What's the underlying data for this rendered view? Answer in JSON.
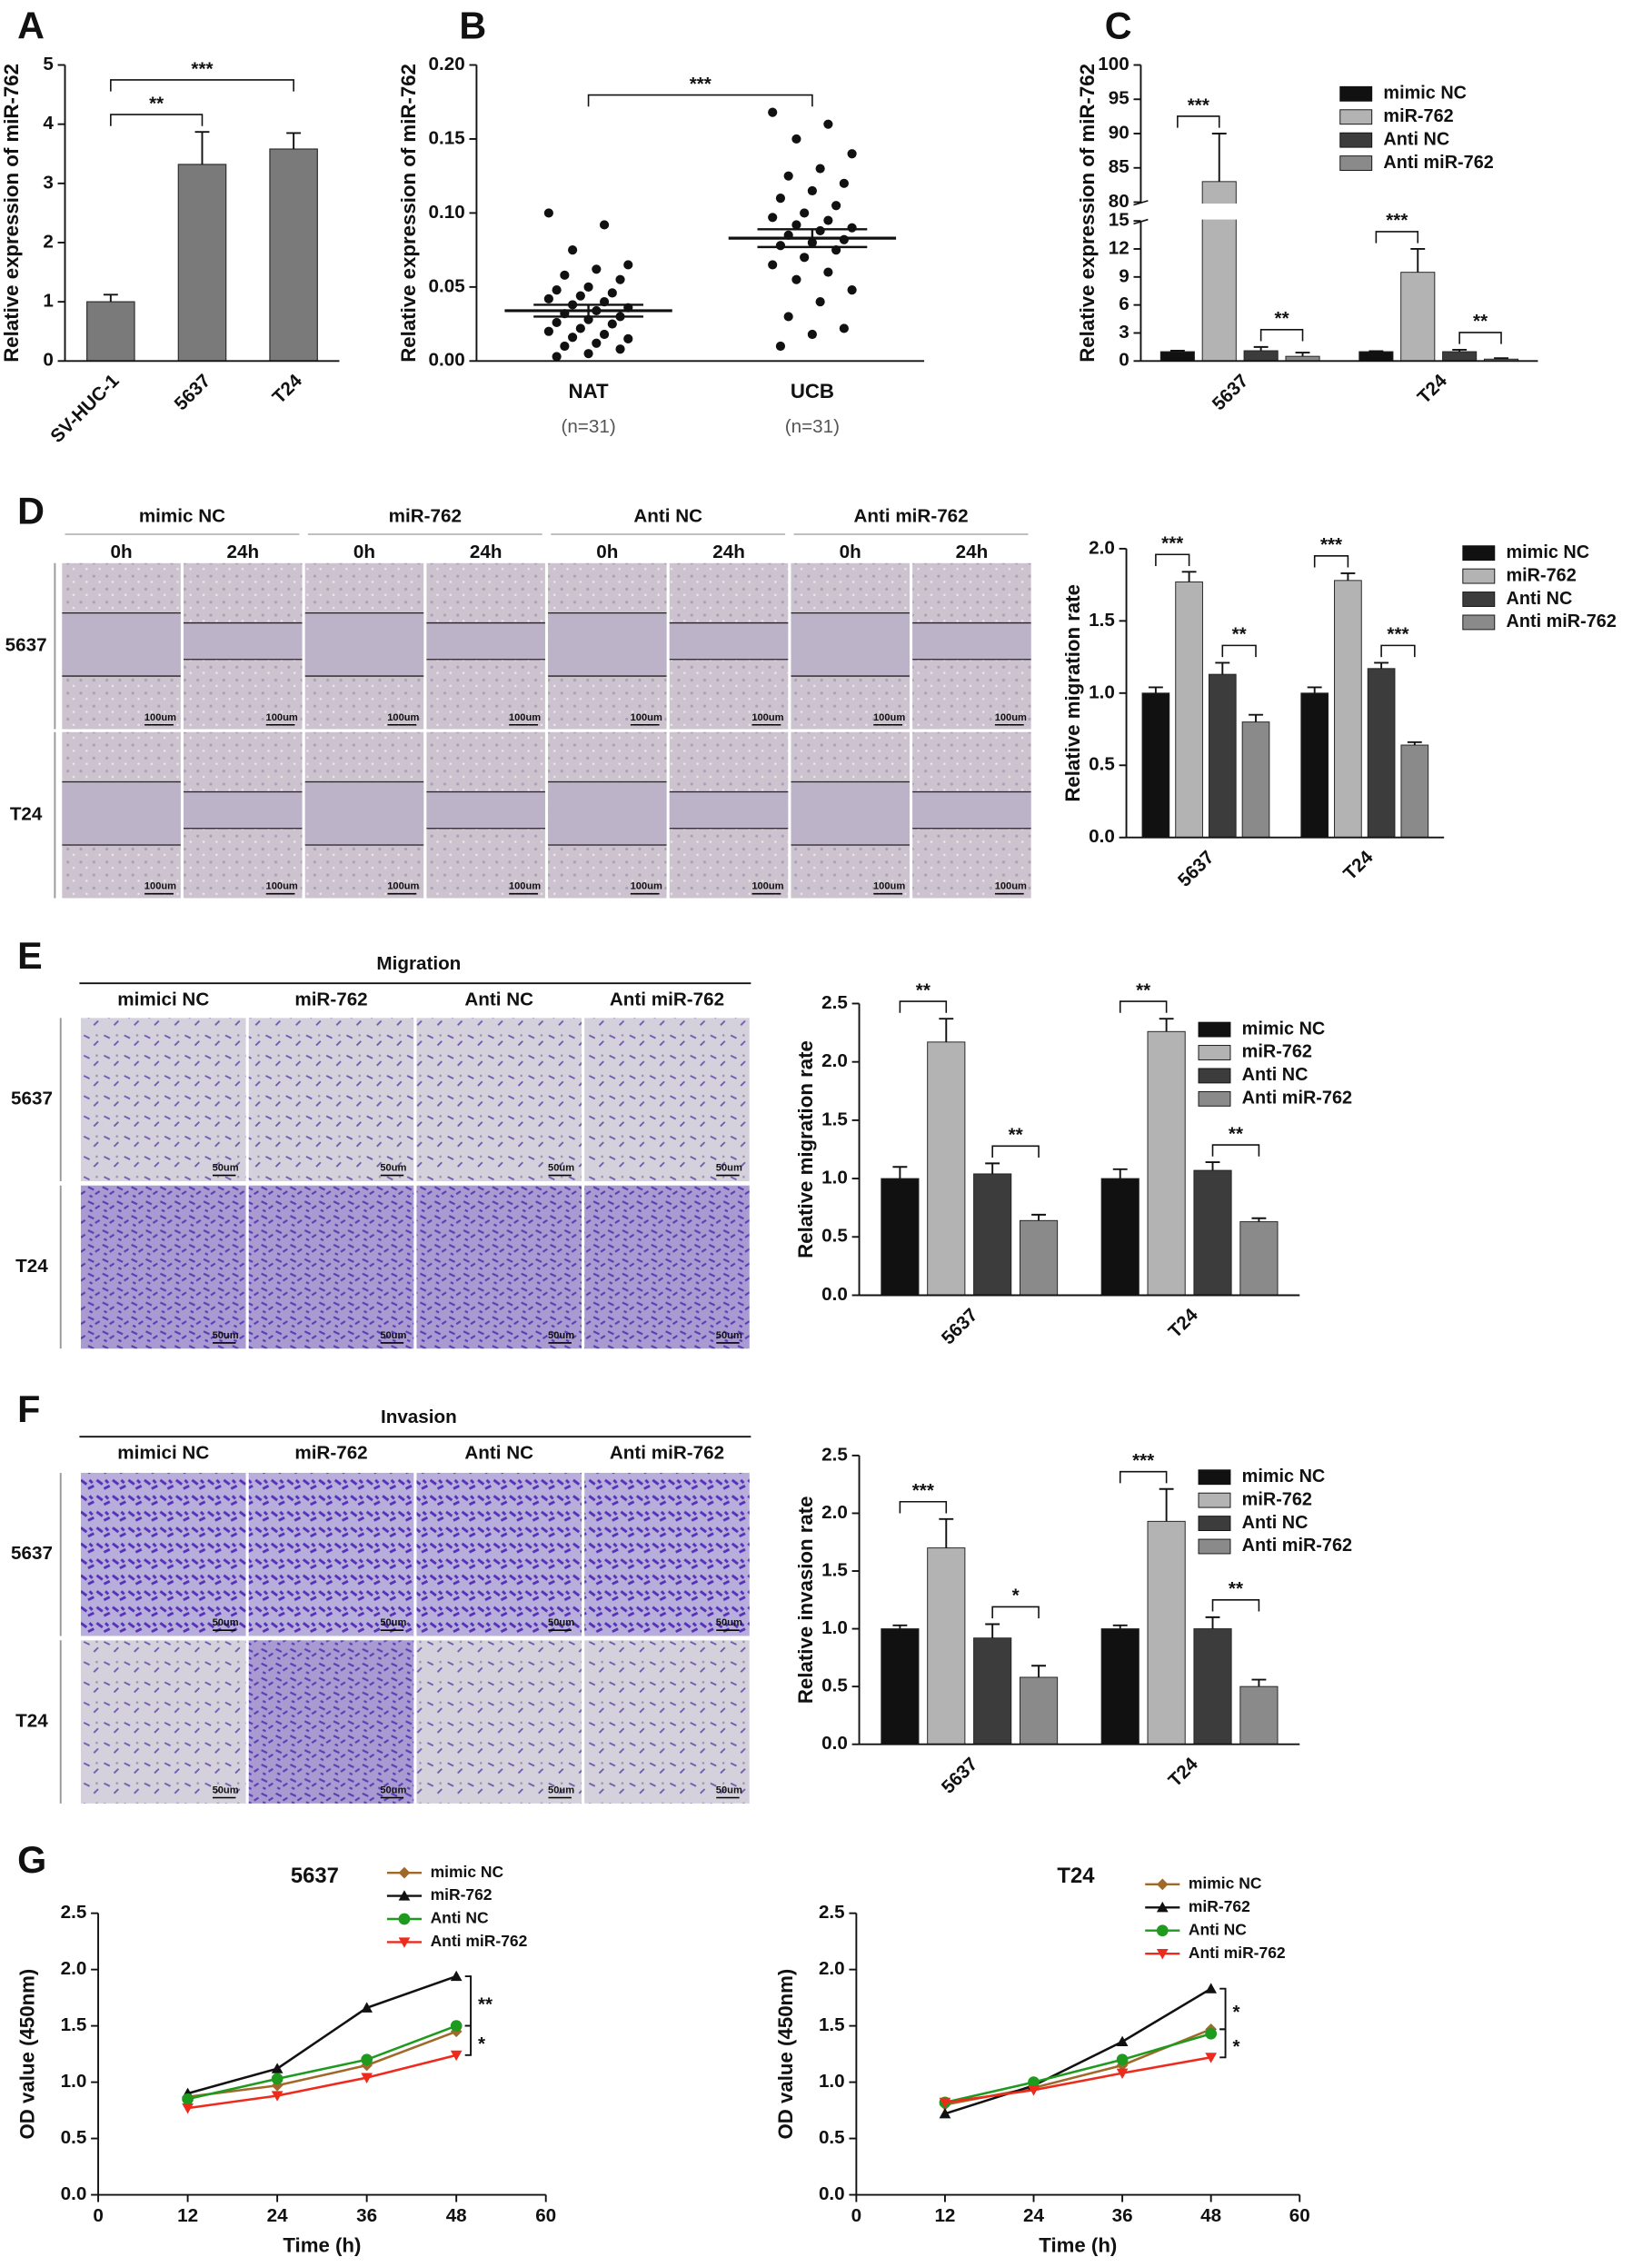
{
  "chart_data": [
    {
      "panel": "A",
      "type": "bar",
      "ylabel": "Relative expression of miR-762",
      "categories": [
        "SV-HUC-1",
        "5637",
        "T24"
      ],
      "values": [
        1.0,
        3.32,
        3.58
      ],
      "errors": [
        0.12,
        0.55,
        0.27
      ],
      "color": "#7a7a7a",
      "ylim": [
        0,
        5
      ],
      "yticks": [
        0,
        1,
        2,
        3,
        4,
        5
      ],
      "annotations": [
        "**",
        "***"
      ]
    },
    {
      "panel": "B",
      "type": "dot",
      "ylabel": "Relative expression of miR-762",
      "categories": [
        "NAT",
        "UCB"
      ],
      "category_notes": [
        "(n=31)",
        "(n=31)"
      ],
      "points": [
        [
          0.1,
          0.092,
          0.075,
          0.065,
          0.062,
          0.058,
          0.055,
          0.05,
          0.048,
          0.046,
          0.044,
          0.042,
          0.04,
          0.038,
          0.036,
          0.034,
          0.032,
          0.03,
          0.028,
          0.026,
          0.025,
          0.022,
          0.02,
          0.018,
          0.016,
          0.015,
          0.012,
          0.01,
          0.008,
          0.005,
          0.003
        ],
        [
          0.168,
          0.16,
          0.15,
          0.14,
          0.13,
          0.125,
          0.12,
          0.115,
          0.11,
          0.105,
          0.1,
          0.097,
          0.095,
          0.092,
          0.09,
          0.088,
          0.085,
          0.082,
          0.08,
          0.078,
          0.075,
          0.07,
          0.065,
          0.06,
          0.055,
          0.048,
          0.04,
          0.03,
          0.022,
          0.018,
          0.01
        ]
      ],
      "means": [
        0.034,
        0.083
      ],
      "sems": [
        0.004,
        0.006
      ],
      "color": "#111111",
      "ylim": [
        0,
        0.2
      ],
      "yticks": [
        {
          "value": 0,
          "label": "0.00"
        },
        {
          "value": 0.05,
          "label": "0.05"
        },
        {
          "value": 0.1,
          "label": "0.10"
        },
        {
          "value": 0.15,
          "label": "0.15"
        },
        {
          "value": 0.2,
          "label": "0.20"
        }
      ],
      "annotations": [
        "***"
      ]
    },
    {
      "panel": "C",
      "type": "grouped_bar",
      "ylabel": "Relative expression of miR-762",
      "categories": [
        "5637",
        "T24"
      ],
      "series": [
        {
          "name": "mimic NC",
          "color": "#111111",
          "values": [
            1.0,
            1.0
          ],
          "errors": [
            0.1,
            0.05
          ]
        },
        {
          "name": "miR-762",
          "color": "#b3b3b3",
          "values": [
            83,
            9.5
          ],
          "errors": [
            7,
            2.5
          ]
        },
        {
          "name": "Anti NC",
          "color": "#3c3c3c",
          "values": [
            1.1,
            1.0
          ],
          "errors": [
            0.4,
            0.2
          ]
        },
        {
          "name": "Anti miR-762",
          "color": "#8a8a8a",
          "values": [
            0.5,
            0.2
          ],
          "errors": [
            0.4,
            0.1
          ]
        }
      ],
      "ylim": [
        0,
        100
      ],
      "y_break": [
        15,
        80
      ],
      "yticks": [
        0,
        3,
        6,
        9,
        12,
        15,
        80,
        85,
        90,
        95,
        100
      ],
      "annotations": [
        "***",
        "**",
        "***",
        "**"
      ]
    },
    {
      "type": "grouped_bar",
      "ylabel": "Relative migration rate",
      "categories": [
        "5637",
        "T24"
      ],
      "series": [
        {
          "name": "mimic NC",
          "color": "#111111",
          "values": [
            1.0,
            1.0
          ],
          "errors": [
            0.04,
            0.04
          ]
        },
        {
          "name": "miR-762",
          "color": "#b3b3b3",
          "values": [
            1.77,
            1.78
          ],
          "errors": [
            0.07,
            0.05
          ]
        },
        {
          "name": "Anti NC",
          "color": "#3c3c3c",
          "values": [
            1.13,
            1.17
          ],
          "errors": [
            0.08,
            0.04
          ]
        },
        {
          "name": "Anti miR-762",
          "color": "#8a8a8a",
          "values": [
            0.8,
            0.64
          ],
          "errors": [
            0.05,
            0.02
          ]
        }
      ],
      "ylim": [
        0,
        2
      ],
      "yticks": [
        {
          "value": 0,
          "label": "0.0"
        },
        {
          "value": 0.5,
          "label": "0.5"
        },
        {
          "value": 1,
          "label": "1.0"
        },
        {
          "value": 1.5,
          "label": "1.5"
        },
        {
          "value": 2,
          "label": "2.0"
        }
      ],
      "annotations": [
        "***",
        "**",
        "***",
        "***"
      ]
    },
    {
      "type": "grouped_bar",
      "ylabel": "Relative migration rate",
      "categories": [
        "5637",
        "T24"
      ],
      "series": [
        {
          "name": "mimic NC",
          "color": "#111111",
          "values": [
            1.0,
            1.0
          ],
          "errors": [
            0.1,
            0.08
          ]
        },
        {
          "name": "miR-762",
          "color": "#b3b3b3",
          "values": [
            2.17,
            2.26
          ],
          "errors": [
            0.2,
            0.11
          ]
        },
        {
          "name": "Anti NC",
          "color": "#3c3c3c",
          "values": [
            1.04,
            1.07
          ],
          "errors": [
            0.09,
            0.07
          ]
        },
        {
          "name": "Anti miR-762",
          "color": "#8a8a8a",
          "values": [
            0.64,
            0.63
          ],
          "errors": [
            0.05,
            0.03
          ]
        }
      ],
      "ylim": [
        0,
        2.5
      ],
      "yticks": [
        {
          "value": 0,
          "label": "0.0"
        },
        {
          "value": 0.5,
          "label": "0.5"
        },
        {
          "value": 1,
          "label": "1.0"
        },
        {
          "value": 1.5,
          "label": "1.5"
        },
        {
          "value": 2,
          "label": "2.0"
        },
        {
          "value": 2.5,
          "label": "2.5"
        }
      ],
      "annotations": [
        "**",
        "**",
        "**",
        "**"
      ]
    },
    {
      "type": "grouped_bar",
      "ylabel": "Relative invasion rate",
      "categories": [
        "5637",
        "T24"
      ],
      "series": [
        {
          "name": "mimic NC",
          "color": "#111111",
          "values": [
            1.0,
            1.0
          ],
          "errors": [
            0.03,
            0.03
          ]
        },
        {
          "name": "miR-762",
          "color": "#b3b3b3",
          "values": [
            1.7,
            1.93
          ],
          "errors": [
            0.25,
            0.28
          ]
        },
        {
          "name": "Anti NC",
          "color": "#3c3c3c",
          "values": [
            0.92,
            1.0
          ],
          "errors": [
            0.12,
            0.1
          ]
        },
        {
          "name": "Anti miR-762",
          "color": "#8a8a8a",
          "values": [
            0.58,
            0.5
          ],
          "errors": [
            0.1,
            0.06
          ]
        }
      ],
      "ylim": [
        0,
        2.5
      ],
      "yticks": [
        {
          "value": 0,
          "label": "0.0"
        },
        {
          "value": 0.5,
          "label": "0.5"
        },
        {
          "value": 1,
          "label": "1.0"
        },
        {
          "value": 1.5,
          "label": "1.5"
        },
        {
          "value": 2,
          "label": "2.0"
        },
        {
          "value": 2.5,
          "label": "2.5"
        }
      ],
      "annotations": [
        "***",
        "*",
        "***",
        "**"
      ]
    },
    {
      "panel": "G",
      "type": "line",
      "title": "5637",
      "xlabel": "Time (h)",
      "ylabel": "OD value (450nm)",
      "x": [
        12,
        24,
        36,
        48
      ],
      "xlim": [
        0,
        60
      ],
      "xticks": [
        0,
        12,
        24,
        36,
        48,
        60
      ],
      "ylim": [
        0,
        2.5
      ],
      "yticks": [
        {
          "value": 0,
          "label": "0.0"
        },
        {
          "value": 0.5,
          "label": "0.5"
        },
        {
          "value": 1,
          "label": "1.0"
        },
        {
          "value": 1.5,
          "label": "1.5"
        },
        {
          "value": 2,
          "label": "2.0"
        },
        {
          "value": 2.5,
          "label": "2.5"
        }
      ],
      "series": [
        {
          "name": "mimic NC",
          "color": "#a0692a",
          "marker": "diamond",
          "values": [
            0.87,
            0.97,
            1.15,
            1.45
          ]
        },
        {
          "name": "miR-762",
          "color": "#111111",
          "marker": "triangle",
          "values": [
            0.9,
            1.12,
            1.66,
            1.94
          ]
        },
        {
          "name": "Anti NC",
          "color": "#1e9a1e",
          "marker": "circle",
          "values": [
            0.85,
            1.03,
            1.2,
            1.5
          ]
        },
        {
          "name": "Anti miR-762",
          "color": "#ee2a1c",
          "marker": "triangle-down",
          "values": [
            0.77,
            0.88,
            1.04,
            1.24
          ]
        }
      ],
      "annotations": [
        "**",
        "*"
      ]
    },
    {
      "type": "line",
      "title": "T24",
      "xlabel": "Time (h)",
      "ylabel": "OD value (450nm)",
      "x": [
        12,
        24,
        36,
        48
      ],
      "xlim": [
        0,
        60
      ],
      "xticks": [
        0,
        12,
        24,
        36,
        48,
        60
      ],
      "ylim": [
        0,
        2.5
      ],
      "yticks": [
        {
          "value": 0,
          "label": "0.0"
        },
        {
          "value": 0.5,
          "label": "0.5"
        },
        {
          "value": 1,
          "label": "1.0"
        },
        {
          "value": 1.5,
          "label": "1.5"
        },
        {
          "value": 2,
          "label": "2.0"
        },
        {
          "value": 2.5,
          "label": "2.5"
        }
      ],
      "series": [
        {
          "name": "mimic NC",
          "color": "#a0692a",
          "marker": "diamond",
          "values": [
            0.8,
            0.95,
            1.15,
            1.47
          ]
        },
        {
          "name": "miR-762",
          "color": "#111111",
          "marker": "triangle",
          "values": [
            0.72,
            0.97,
            1.36,
            1.83
          ]
        },
        {
          "name": "Anti NC",
          "color": "#1e9a1e",
          "marker": "circle",
          "values": [
            0.82,
            1.0,
            1.2,
            1.43
          ]
        },
        {
          "name": "Anti miR-762",
          "color": "#ee2a1c",
          "marker": "triangle-down",
          "values": [
            0.82,
            0.93,
            1.08,
            1.22
          ]
        }
      ],
      "annotations": [
        "*",
        "*"
      ]
    }
  ],
  "image_panels": [
    {
      "panel": "D",
      "groups": [
        "mimic NC",
        "miR-762",
        "Anti NC",
        "Anti miR-762"
      ],
      "times": [
        "0h",
        "24h"
      ],
      "rows": [
        "5637",
        "T24"
      ],
      "scale_bar": "100um"
    },
    {
      "panel": "E",
      "title": "Migration",
      "columns": [
        "mimici NC",
        "miR-762",
        "Anti NC",
        "Anti miR-762"
      ],
      "rows": [
        "5637",
        "T24"
      ],
      "scale_bar": "50um"
    },
    {
      "panel": "F",
      "title": "Invasion",
      "columns": [
        "mimici NC",
        "miR-762",
        "Anti NC",
        "Anti miR-762"
      ],
      "rows": [
        "5637",
        "T24"
      ],
      "scale_bar": "50um"
    }
  ]
}
